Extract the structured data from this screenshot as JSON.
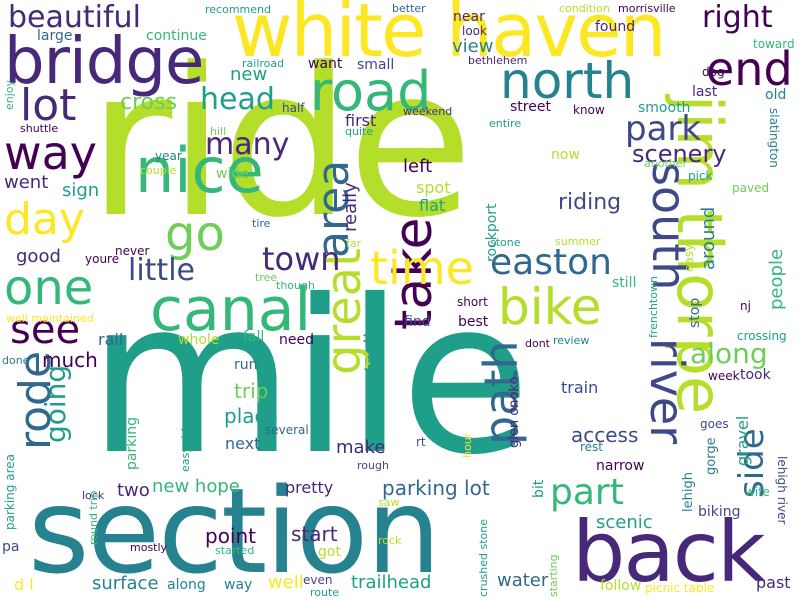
{
  "palette": {
    "yellow": "#fde725",
    "lime": "#b5de2b",
    "green": "#6ece58",
    "mid_green": "#35b779",
    "teal": "#1f9e89",
    "cyan": "#26828e",
    "blue": "#31688e",
    "indigo": "#3e4989",
    "purple": "#482878",
    "dark": "#440154"
  },
  "words": [
    {
      "text": "mile",
      "color": "teal"
    },
    {
      "text": "ride",
      "color": "lime"
    },
    {
      "text": "section",
      "color": "cyan"
    },
    {
      "text": "white haven",
      "color": "yellow"
    },
    {
      "text": "back",
      "color": "purple"
    },
    {
      "text": "bridge",
      "color": "purple"
    },
    {
      "text": "jim thorpe",
      "color": "lime"
    },
    {
      "text": "canal",
      "color": "mid_green"
    },
    {
      "text": "nice",
      "color": "mid_green"
    },
    {
      "text": "road",
      "color": "mid_green"
    },
    {
      "text": "north",
      "color": "cyan"
    },
    {
      "text": "one",
      "color": "mid_green"
    },
    {
      "text": "river",
      "color": "indigo"
    },
    {
      "text": "south",
      "color": "indigo"
    },
    {
      "text": "take",
      "color": "dark"
    },
    {
      "text": "great",
      "color": "lime"
    },
    {
      "text": "bike",
      "color": "lime"
    },
    {
      "text": "end",
      "color": "dark"
    },
    {
      "text": "way",
      "color": "dark"
    },
    {
      "text": "path",
      "color": "blue"
    },
    {
      "text": "area",
      "color": "blue"
    },
    {
      "text": "lot",
      "color": "purple"
    },
    {
      "text": "time",
      "color": "yellow"
    },
    {
      "text": "rode",
      "color": "blue"
    },
    {
      "text": "go",
      "color": "green"
    },
    {
      "text": "day",
      "color": "yellow"
    },
    {
      "text": "easton",
      "color": "blue"
    },
    {
      "text": "see",
      "color": "dark"
    },
    {
      "text": "part",
      "color": "mid_green"
    },
    {
      "text": "side",
      "color": "blue"
    },
    {
      "text": "park",
      "color": "indigo"
    },
    {
      "text": "town",
      "color": "purple"
    },
    {
      "text": "going",
      "color": "teal"
    },
    {
      "text": "beautiful",
      "color": "purple"
    },
    {
      "text": "head",
      "color": "teal"
    },
    {
      "text": "many",
      "color": "purple"
    },
    {
      "text": "little",
      "color": "indigo"
    },
    {
      "text": "along",
      "color": "green"
    },
    {
      "text": "right",
      "color": "dark"
    },
    {
      "text": "scenery",
      "color": "purple"
    },
    {
      "text": "rail",
      "color": "blue"
    },
    {
      "text": "good",
      "color": "purple"
    },
    {
      "text": "much",
      "color": "dark"
    },
    {
      "text": "cross",
      "color": "green"
    },
    {
      "text": "went",
      "color": "purple"
    },
    {
      "text": "sign",
      "color": "teal"
    },
    {
      "text": "new",
      "color": "teal"
    },
    {
      "text": "riding",
      "color": "indigo"
    },
    {
      "text": "view",
      "color": "cyan"
    },
    {
      "text": "people",
      "color": "mid_green"
    },
    {
      "text": "around",
      "color": "cyan"
    },
    {
      "text": "trails",
      "color": "teal"
    },
    {
      "text": "really",
      "color": "purple"
    },
    {
      "text": "rockport",
      "color": "teal"
    },
    {
      "text": "gravel",
      "color": "teal"
    },
    {
      "text": "left",
      "color": "dark"
    },
    {
      "text": "spot",
      "color": "lime"
    },
    {
      "text": "flat",
      "color": "teal"
    },
    {
      "text": "first",
      "color": "purple"
    },
    {
      "text": "access",
      "color": "indigo"
    },
    {
      "text": "place",
      "color": "teal"
    },
    {
      "text": "trip",
      "color": "green"
    },
    {
      "text": "make",
      "color": "purple"
    },
    {
      "text": "next",
      "color": "blue"
    },
    {
      "text": "two",
      "color": "purple"
    },
    {
      "text": "parking lot",
      "color": "blue"
    },
    {
      "text": "new hope",
      "color": "mid_green"
    },
    {
      "text": "pretty",
      "color": "purple"
    },
    {
      "text": "point",
      "color": "dark"
    },
    {
      "text": "start",
      "color": "purple"
    },
    {
      "text": "scenic",
      "color": "teal"
    },
    {
      "text": "surface",
      "color": "cyan"
    },
    {
      "text": "trailhead",
      "color": "teal"
    },
    {
      "text": "water",
      "color": "blue"
    },
    {
      "text": "well",
      "color": "yellow"
    },
    {
      "text": "along",
      "color": "cyan"
    },
    {
      "text": "way",
      "color": "cyan"
    },
    {
      "text": "continue",
      "color": "mid_green"
    },
    {
      "text": "large",
      "color": "blue"
    },
    {
      "text": "parking",
      "color": "mid_green"
    },
    {
      "text": "biking",
      "color": "indigo"
    },
    {
      "text": "gorge",
      "color": "cyan"
    },
    {
      "text": "lehigh river",
      "color": "indigo"
    },
    {
      "text": "lehigh",
      "color": "cyan"
    },
    {
      "text": "glen onoko",
      "color": "purple"
    },
    {
      "text": "stop",
      "color": "blue"
    },
    {
      "text": "train",
      "color": "indigo"
    },
    {
      "text": "still",
      "color": "mid_green"
    },
    {
      "text": "best",
      "color": "dark"
    },
    {
      "text": "find",
      "color": "indigo"
    },
    {
      "text": "need",
      "color": "dark"
    },
    {
      "text": "fall",
      "color": "mid_green"
    },
    {
      "text": "run",
      "color": "blue"
    },
    {
      "text": "whole",
      "color": "lime"
    },
    {
      "text": "several",
      "color": "blue"
    },
    {
      "text": "rt",
      "color": "indigo"
    },
    {
      "text": "rest",
      "color": "cyan"
    },
    {
      "text": "narrow",
      "color": "dark"
    },
    {
      "text": "wife",
      "color": "mid_green"
    },
    {
      "text": "goes",
      "color": "indigo"
    },
    {
      "text": "took",
      "color": "purple"
    },
    {
      "text": "week",
      "color": "dark"
    },
    {
      "text": "crossing",
      "color": "teal"
    },
    {
      "text": "old",
      "color": "cyan"
    },
    {
      "text": "last",
      "color": "purple"
    },
    {
      "text": "smooth",
      "color": "teal"
    },
    {
      "text": "dog",
      "color": "dark"
    },
    {
      "text": "toward",
      "color": "mid_green"
    },
    {
      "text": "easy",
      "color": "lime"
    },
    {
      "text": "nj",
      "color": "dark"
    },
    {
      "text": "pick",
      "color": "teal"
    },
    {
      "text": "paved",
      "color": "green"
    },
    {
      "text": "slatington",
      "color": "cyan"
    },
    {
      "text": "another",
      "color": "green"
    },
    {
      "text": "summer",
      "color": "lime"
    },
    {
      "text": "now",
      "color": "lime"
    },
    {
      "text": "stone",
      "color": "teal"
    },
    {
      "text": "street",
      "color": "dark"
    },
    {
      "text": "know",
      "color": "dark"
    },
    {
      "text": "entire",
      "color": "teal"
    },
    {
      "text": "near",
      "color": "purple"
    },
    {
      "text": "look",
      "color": "purple"
    },
    {
      "text": "found",
      "color": "purple"
    },
    {
      "text": "condition",
      "color": "lime"
    },
    {
      "text": "morrisville",
      "color": "dark"
    },
    {
      "text": "better",
      "color": "blue"
    },
    {
      "text": "recommend",
      "color": "teal"
    },
    {
      "text": "bethlehem",
      "color": "purple"
    },
    {
      "text": "small",
      "color": "indigo"
    },
    {
      "text": "want",
      "color": "dark"
    },
    {
      "text": "railroad",
      "color": "teal"
    },
    {
      "text": "half",
      "color": "indigo"
    },
    {
      "text": "weekend",
      "color": "purple"
    },
    {
      "text": "quite",
      "color": "teal"
    },
    {
      "text": "hill",
      "color": "green"
    },
    {
      "text": "shuttle",
      "color": "dark"
    },
    {
      "text": "enjoy",
      "color": "mid_green"
    },
    {
      "text": "year",
      "color": "cyan"
    },
    {
      "text": "couple",
      "color": "lime"
    },
    {
      "text": "wide",
      "color": "green"
    },
    {
      "text": "tire",
      "color": "blue"
    },
    {
      "text": "far",
      "color": "lime"
    },
    {
      "text": "never",
      "color": "dark"
    },
    {
      "text": "youre",
      "color": "dark"
    },
    {
      "text": "tree",
      "color": "green"
    },
    {
      "text": "though",
      "color": "mid_green"
    },
    {
      "text": "well maintained",
      "color": "yellow"
    },
    {
      "text": "done",
      "color": "cyan"
    },
    {
      "text": "short",
      "color": "dark"
    },
    {
      "text": "dont",
      "color": "dark"
    },
    {
      "text": "review",
      "color": "cyan"
    },
    {
      "text": "open",
      "color": "teal"
    },
    {
      "text": "frenchtown",
      "color": "teal"
    },
    {
      "text": "hour",
      "color": "yellow"
    },
    {
      "text": "easy ride",
      "color": "teal"
    },
    {
      "text": "rough",
      "color": "indigo"
    },
    {
      "text": "bit",
      "color": "teal"
    },
    {
      "text": "lock",
      "color": "purple"
    },
    {
      "text": "parking area",
      "color": "teal"
    },
    {
      "text": "round trip",
      "color": "mid_green"
    },
    {
      "text": "pa",
      "color": "indigo"
    },
    {
      "text": "saw",
      "color": "lime"
    },
    {
      "text": "rock",
      "color": "lime"
    },
    {
      "text": "crushed stone",
      "color": "teal"
    },
    {
      "text": "starting",
      "color": "green"
    },
    {
      "text": "mostly",
      "color": "dark"
    },
    {
      "text": "started",
      "color": "mid_green"
    },
    {
      "text": "got",
      "color": "lime"
    },
    {
      "text": "even",
      "color": "indigo"
    },
    {
      "text": "route",
      "color": "teal"
    },
    {
      "text": "d l",
      "color": "yellow"
    },
    {
      "text": "follow",
      "color": "lime"
    },
    {
      "text": "picnic table",
      "color": "yellow"
    },
    {
      "text": "past",
      "color": "purple"
    }
  ]
}
